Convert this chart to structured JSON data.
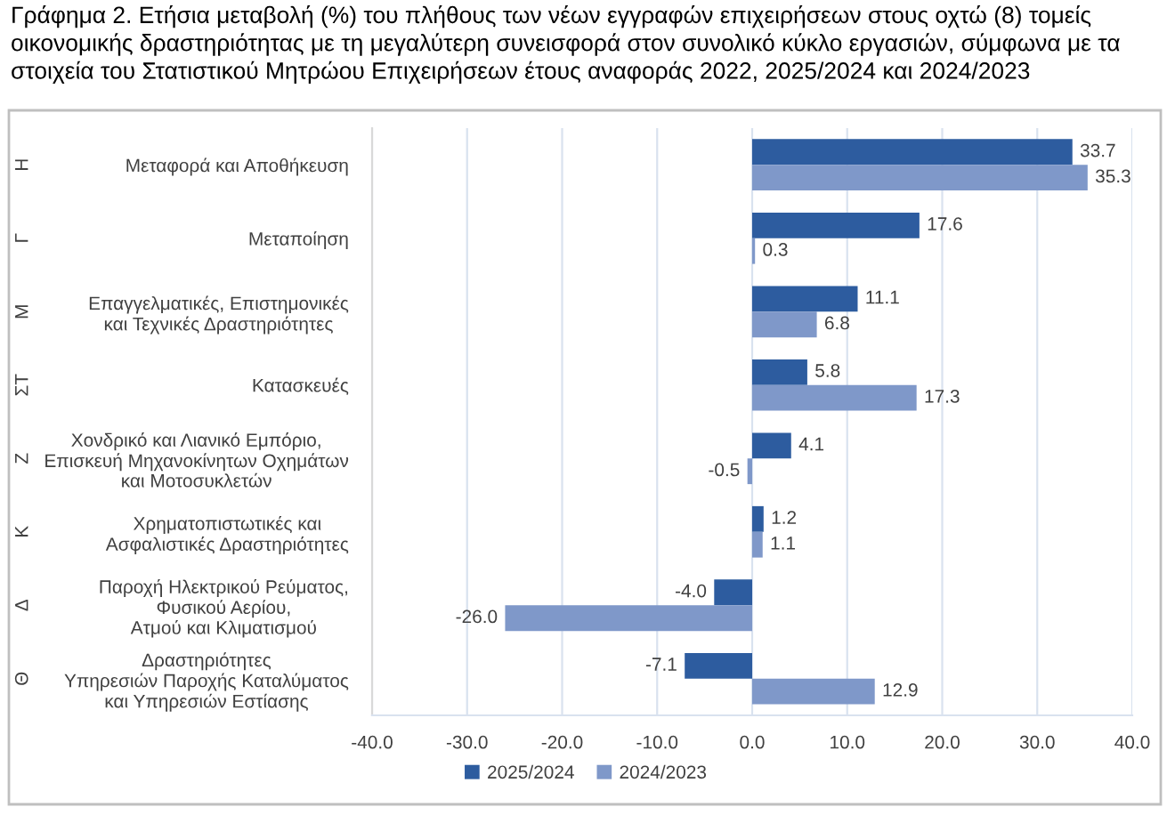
{
  "chart_data": {
    "type": "bar",
    "orientation": "horizontal",
    "title": "Γράφημα 2. Ετήσια μεταβολή (%) του πλήθους των νέων εγγραφών επιχειρήσεων στους οχτώ (8) τομείς οικονομικής δραστηριότητας με τη μεγαλύτερη συνεισφορά στον συνολικό κύκλο εργασιών, σύμφωνα με τα στοιχεία του Στατιστικού Μητρώου Επιχειρήσεων έτους αναφοράς 2022, 2025/2024 και 2024/2023",
    "categories": [
      "Μεταφορά και Αποθήκευση",
      "Μεταποίηση",
      "Επαγγελματικές, Επιστημονικές\nκαι Τεχνικές Δραστηριότητες",
      "Κατασκευές",
      "Χονδρικό και Λιανικό Εμπόριο,\nΕπισκευή Μηχανοκίνητων Οχημάτων\nκαι Μοτοσυκλετών",
      "Χρηματοπιστωτικές και\nΑσφαλιστικές Δραστηριότητες",
      "Παροχή Ηλεκτρικού Ρεύματος,\nΦυσικού Αερίου,\nΑτμού και Κλιματισμού",
      "Δραστηριότητες\nΥπηρεσιών Παροχής Καταλύματος\nκαι Υπηρεσιών Εστίασης"
    ],
    "y2_categories": [
      "Η",
      "Γ",
      "Μ",
      "ΣΤ",
      "Ζ",
      "Κ",
      "Δ",
      "Θ"
    ],
    "series": [
      {
        "name": "2025/2024",
        "color": "#2d5c9f",
        "values": [
          33.7,
          17.6,
          11.1,
          5.8,
          4.1,
          1.2,
          -4.0,
          -7.1
        ],
        "value_labels": [
          "33.7",
          "17.6",
          "11.1",
          "5.8",
          "4.1",
          "1.2",
          "-4.0",
          "-7.1"
        ]
      },
      {
        "name": "2024/2023",
        "color": "#7f98c9",
        "values": [
          35.3,
          0.3,
          6.8,
          17.3,
          -0.5,
          1.1,
          -26.0,
          12.9
        ],
        "value_labels": [
          "35.3",
          "0.3",
          "6.8",
          "17.3",
          "-0.5",
          "1.1",
          "-26.0",
          "12.9"
        ]
      }
    ],
    "xlim": [
      -40,
      40
    ],
    "xticks": [
      {
        "value": -40,
        "label": "-40.0"
      },
      {
        "value": -30,
        "label": "-30.0"
      },
      {
        "value": -20,
        "label": "-20.0"
      },
      {
        "value": -10,
        "label": "-10.0"
      },
      {
        "value": 0,
        "label": "0.0"
      },
      {
        "value": 10,
        "label": "10.0"
      },
      {
        "value": 20,
        "label": "20.0"
      },
      {
        "value": 30,
        "label": "30.0"
      },
      {
        "value": 40,
        "label": "40.0"
      }
    ],
    "grid": "x",
    "legend": "bottom"
  }
}
